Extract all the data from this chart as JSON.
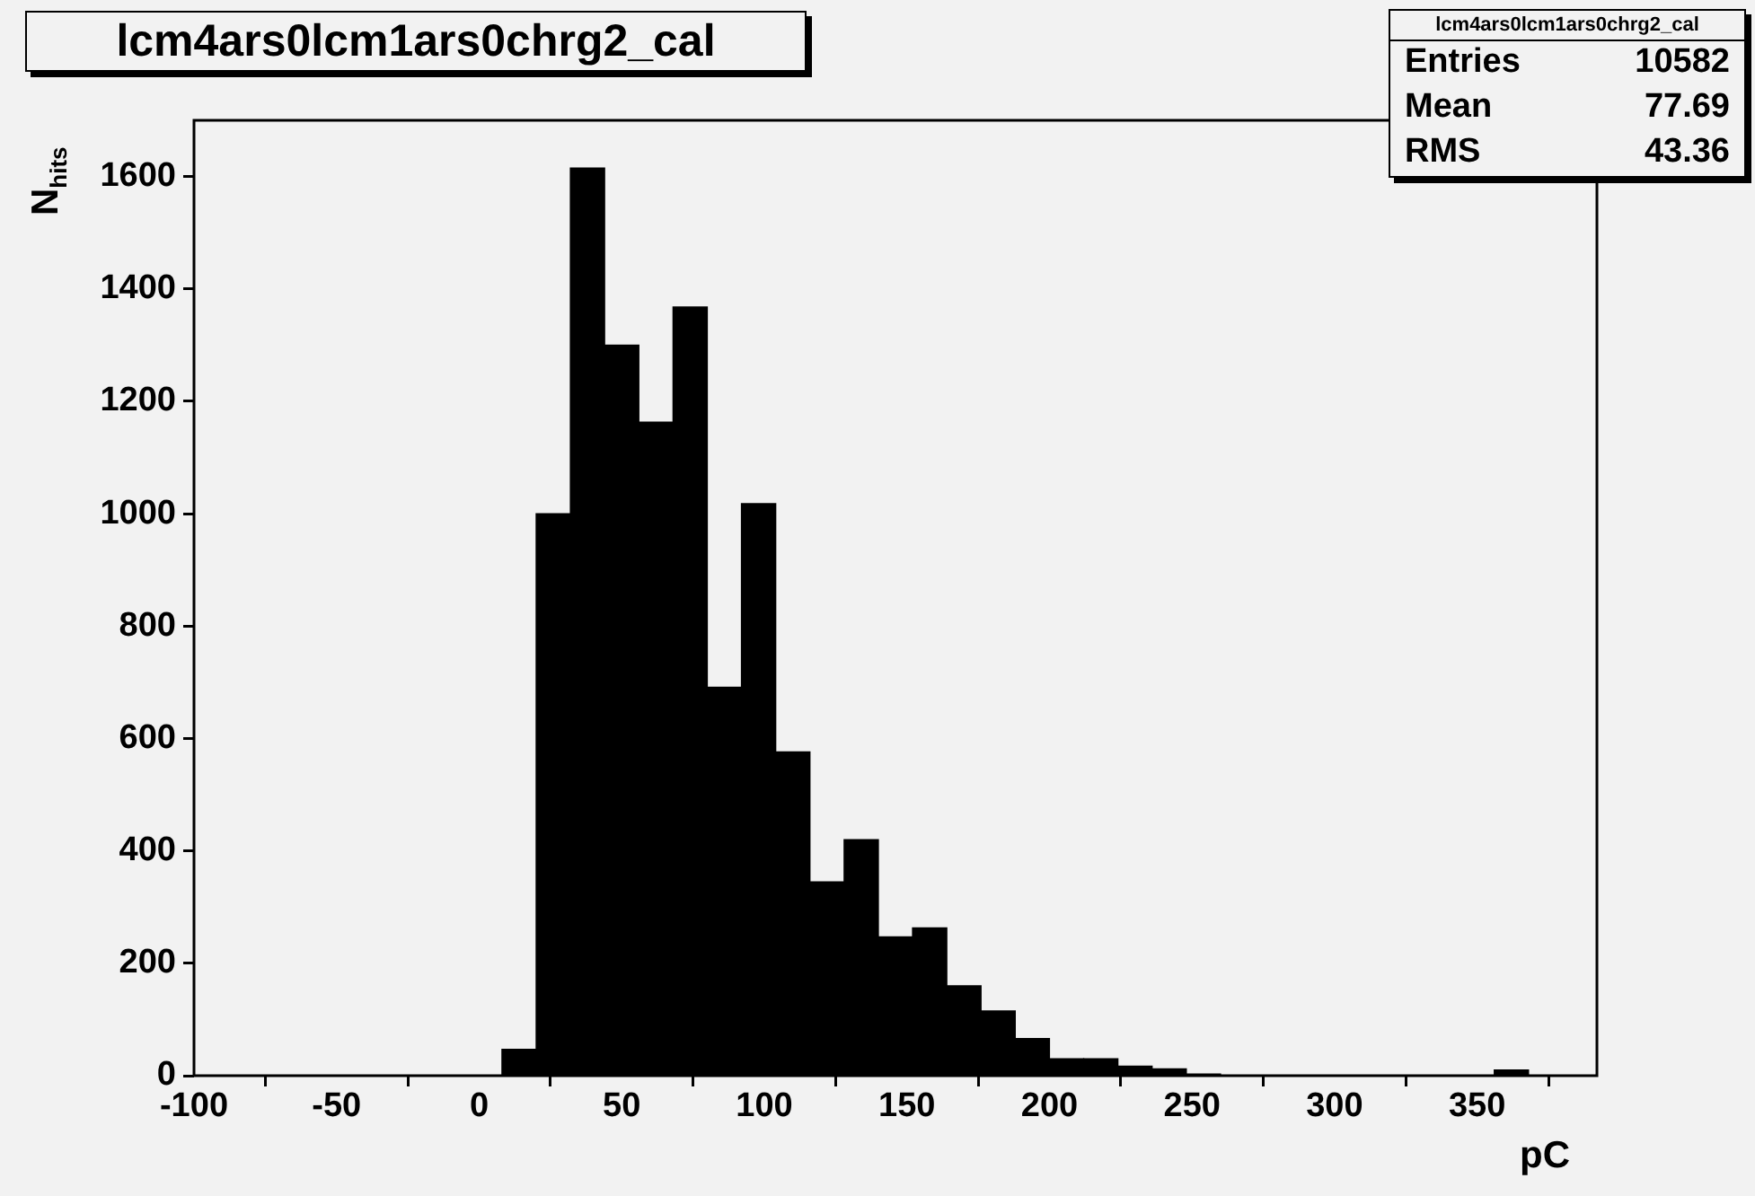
{
  "chart_data": {
    "type": "histogram",
    "title": "lcm4ars0lcm1ars0chrg2_cal",
    "xlabel": "pC",
    "ylabel": "N$_{hits}$",
    "bins": [
      -100,
      -88,
      -76,
      -64,
      -52,
      -40,
      -28,
      -16,
      -4,
      8,
      20,
      32,
      44,
      56,
      68,
      80,
      92,
      104,
      116,
      128,
      140,
      152,
      164,
      176,
      188,
      200,
      212,
      224,
      236,
      248,
      260,
      272,
      284,
      296,
      308,
      320,
      332,
      344,
      356,
      368,
      380,
      392
    ],
    "values": [
      0,
      0,
      0,
      0,
      0,
      0,
      0,
      0,
      0,
      47,
      1000,
      1615,
      1300,
      1163,
      1368,
      691,
      1018,
      576,
      345,
      420,
      247,
      263,
      160,
      115,
      66,
      30,
      30,
      17,
      12,
      3,
      0,
      0,
      0,
      0,
      0,
      0,
      0,
      0,
      10,
      0,
      0
    ],
    "color": "#000000",
    "xlim": [
      -100,
      392
    ],
    "xticks": [
      -100,
      -50,
      0,
      50,
      100,
      150,
      200,
      250,
      300,
      350
    ],
    "ylim": [
      0,
      1700
    ],
    "yticks": [
      0,
      200,
      400,
      600,
      800,
      1000,
      1200,
      1400,
      1600
    ],
    "grid": false,
    "legend": false,
    "annotations": [
      "lcm4ars0lcm1ars0chrg2_cal",
      "Entries",
      "10582",
      "Mean",
      "77.69",
      "RMS",
      "43.36"
    ]
  }
}
